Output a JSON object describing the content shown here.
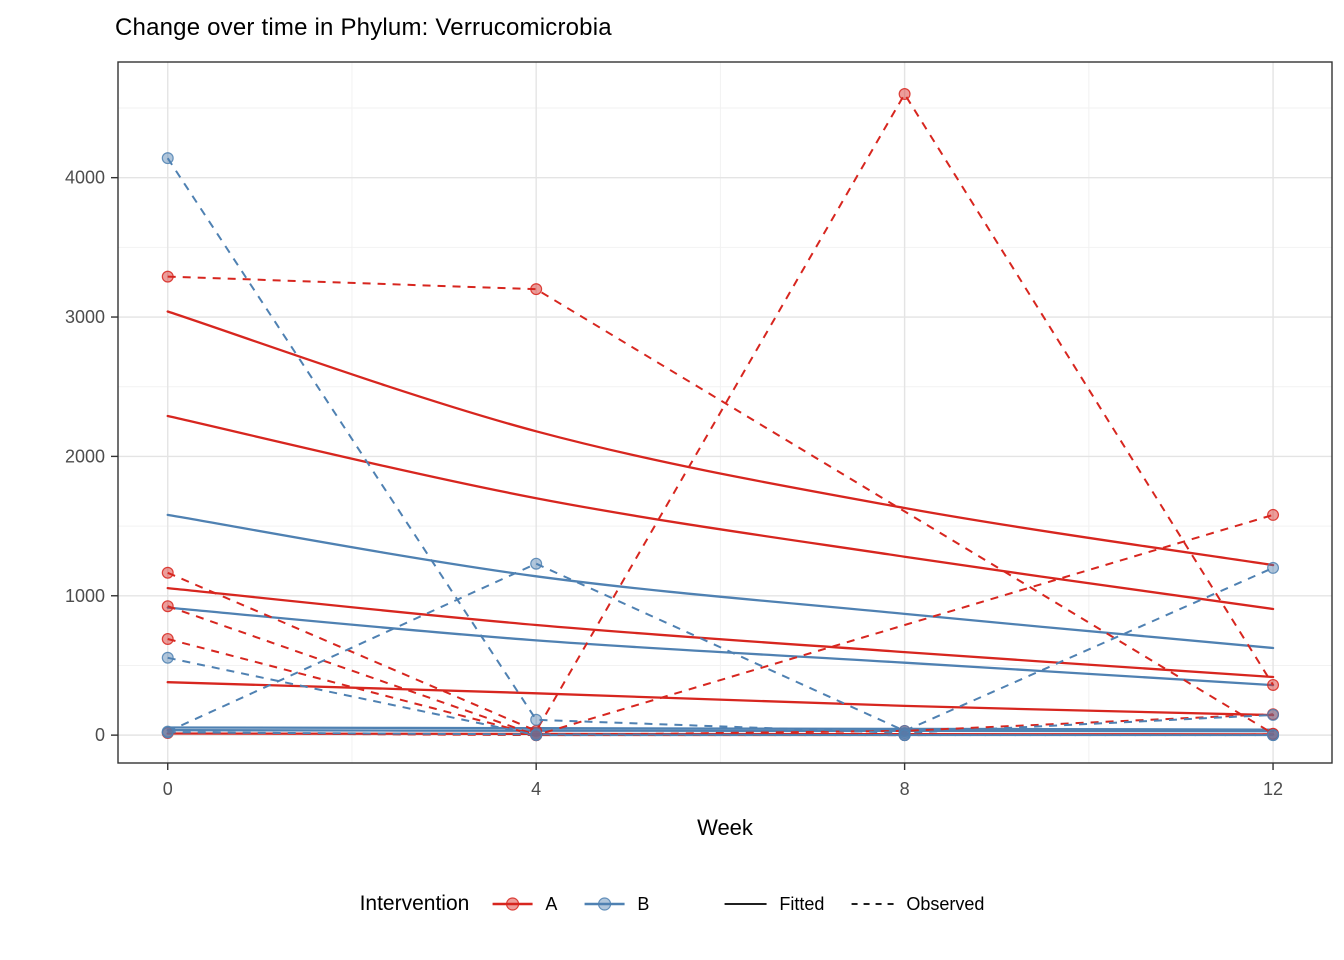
{
  "page": {
    "title": "Change over time in Phylum: Verrucomicrobia"
  },
  "chart_data": {
    "type": "line",
    "title": "Change over time in Phylum: Verrucomicrobia",
    "xlabel": "Week",
    "ylabel": "",
    "x": [
      0,
      4,
      8,
      12
    ],
    "xlim": [
      -0.54,
      12.64
    ],
    "ylim": [
      -200,
      4830
    ],
    "xticks": {
      "values": [
        0,
        4,
        8,
        12
      ],
      "labels": [
        "0",
        "4",
        "8",
        "12"
      ]
    },
    "yticks": {
      "values": [
        0,
        1000,
        2000,
        3000,
        4000
      ],
      "labels": [
        "0",
        "1000",
        "2000",
        "3000",
        "4000"
      ]
    },
    "x_minor": [
      2,
      6,
      10
    ],
    "y_minor": [
      500,
      1500,
      2500,
      3500,
      4500
    ],
    "grid": true,
    "legend_position": "bottom",
    "legend": {
      "title": "Intervention",
      "groups": [
        {
          "label": "A",
          "color": "#d7261f"
        },
        {
          "label": "B",
          "color": "#4f81b2"
        }
      ],
      "linetypes": [
        {
          "label": "Fitted",
          "style": "solid"
        },
        {
          "label": "Observed",
          "style": "dashed"
        }
      ]
    },
    "series": [
      {
        "id": "A1",
        "group": "A",
        "observed": [
          3290,
          3200,
          null,
          10
        ],
        "fitted": [
          3040,
          2180,
          1630,
          1220
        ]
      },
      {
        "id": "A2",
        "group": "A",
        "observed": [
          1165,
          30,
          4600,
          360
        ],
        "fitted": [
          2290,
          1700,
          1280,
          905
        ]
      },
      {
        "id": "A3",
        "group": "A",
        "observed": [
          925,
          0,
          30,
          150
        ],
        "fitted": [
          1055,
          790,
          596,
          417
        ]
      },
      {
        "id": "A4",
        "group": "A",
        "observed": [
          690,
          0,
          null,
          1580
        ],
        "fitted": [
          380,
          300,
          210,
          144
        ]
      },
      {
        "id": "A5",
        "group": "A",
        "observed": [
          15,
          0,
          0,
          5
        ],
        "fitted": [
          12,
          9,
          7,
          5
        ]
      },
      {
        "id": "B1",
        "group": "B",
        "observed": [
          4140,
          110,
          15,
          145
        ],
        "fitted": [
          1580,
          1140,
          870,
          625
        ]
      },
      {
        "id": "B2",
        "group": "B",
        "observed": [
          25,
          1230,
          30,
          1200
        ],
        "fitted": [
          915,
          680,
          520,
          359
        ]
      },
      {
        "id": "B3",
        "group": "B",
        "observed": [
          555,
          0,
          0,
          0
        ],
        "fitted": [
          55,
          50,
          45,
          40
        ]
      },
      {
        "id": "B4",
        "group": "B",
        "observed": [
          20,
          5,
          0,
          0
        ],
        "fitted": [
          35,
          32,
          30,
          28
        ]
      }
    ],
    "colors": {
      "A": "#d7261f",
      "B": "#4f81b2",
      "grid_major": "#e4e4e4",
      "grid_minor": "#f2f2f2",
      "axis_text": "#4d4d4d",
      "panel_border": "#333333",
      "tick_mark": "#333333",
      "title": "#000000"
    }
  }
}
